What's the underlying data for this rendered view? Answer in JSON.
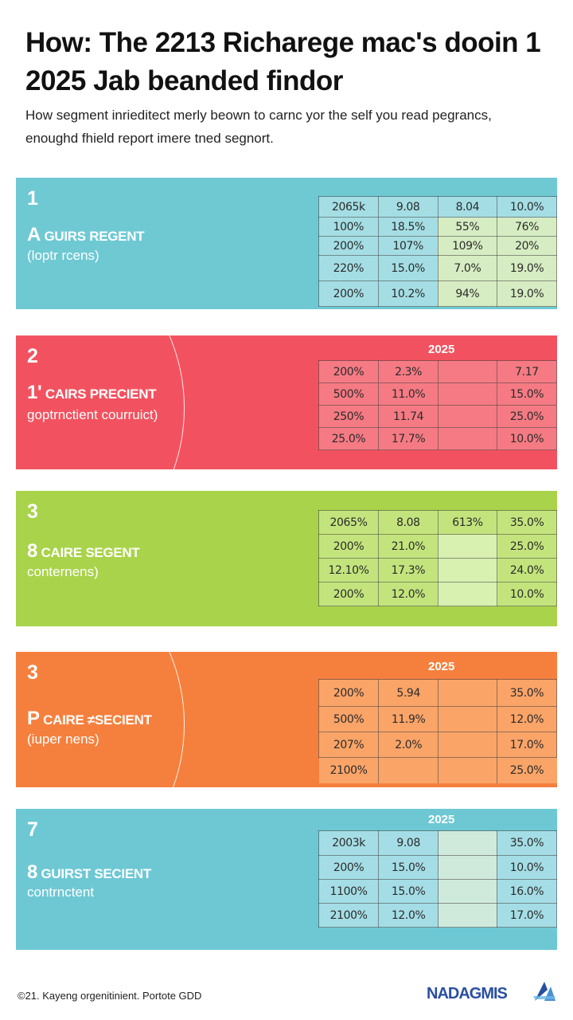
{
  "title": "How: The 2213 Richarege mac's dooin 1 2025 Jab beanded findor",
  "subtitle": "How segment inriedi​tect merly beown to carnc yor the self you read pegrancs, enoughd fhield report imere tned segnort.",
  "colors": {
    "blue": "#6ec9d3",
    "red": "#f2525f",
    "green": "#a9d34a",
    "orange": "#f5803e",
    "blue2": "#6dc8d4"
  },
  "segments": [
    {
      "number": "1",
      "name_prefix": "A",
      "name": "GUIRS REGENT",
      "desc": "(loptr rcens)",
      "year": "",
      "rows": [
        [
          "2065k",
          "9.08",
          "8.04",
          "10.0%"
        ],
        [
          "100%",
          "18.5%",
          "55%",
          "76%"
        ],
        [
          "200%",
          "107%",
          "109%",
          "20%"
        ],
        [
          "220%",
          "15.0%",
          "7.0%",
          "19.0%"
        ],
        [
          "200%",
          "10.2%",
          "94%",
          "19.0%"
        ]
      ]
    },
    {
      "number": "2",
      "name_prefix": "1'",
      "name": "CAIRS PRECIENT",
      "desc": "goptrnctient courruict)",
      "year": "2025",
      "rows": [
        [
          "200%",
          "2.3%",
          "",
          "7.17"
        ],
        [
          "500%",
          "11.0%",
          "",
          "15.0%"
        ],
        [
          "250%",
          "11.74",
          "",
          "25.0%"
        ],
        [
          "25.0%",
          "17.7%",
          "",
          "10.0%"
        ]
      ]
    },
    {
      "number": "3",
      "name_prefix": "8",
      "name": "CAIRE SEGENT",
      "desc": "conternens)",
      "year": "",
      "rows": [
        [
          "2065%",
          "8.08",
          "613%",
          "35.0%"
        ],
        [
          "200%",
          "21.0%",
          "",
          "25.0%"
        ],
        [
          "12.10%",
          "17.3%",
          "",
          "24.0%"
        ],
        [
          "200%",
          "12.0%",
          "",
          "10.0%"
        ]
      ]
    },
    {
      "number": "3",
      "name_prefix": "P",
      "name": "CAIRE ≠SECIENT",
      "desc": "(iuper nens)",
      "year": "2025",
      "rows": [
        [
          "200%",
          "5.94",
          "",
          "35.0%"
        ],
        [
          "500%",
          "11.9%",
          "",
          "12.0%"
        ],
        [
          "207%",
          "2.0%",
          "",
          "17.0%"
        ],
        [
          "2100%",
          "",
          "",
          "25.0%"
        ]
      ]
    },
    {
      "number": "7",
      "name_prefix": "8",
      "name": "GUIRST SECIENT",
      "desc": "contrnctent",
      "year": "2025",
      "rows": [
        [
          "2003k",
          "9.08",
          "",
          "35.0%"
        ],
        [
          "200%",
          "15.0%",
          "",
          "10.0%"
        ],
        [
          "1100%",
          "15.0%",
          "",
          "16.0%"
        ],
        [
          "2100%",
          "12.0%",
          "",
          "17.0%"
        ]
      ]
    }
  ],
  "footer": "©21. Kayeng orgenitinient. Portote GDD",
  "logo": "NADAGMIS"
}
